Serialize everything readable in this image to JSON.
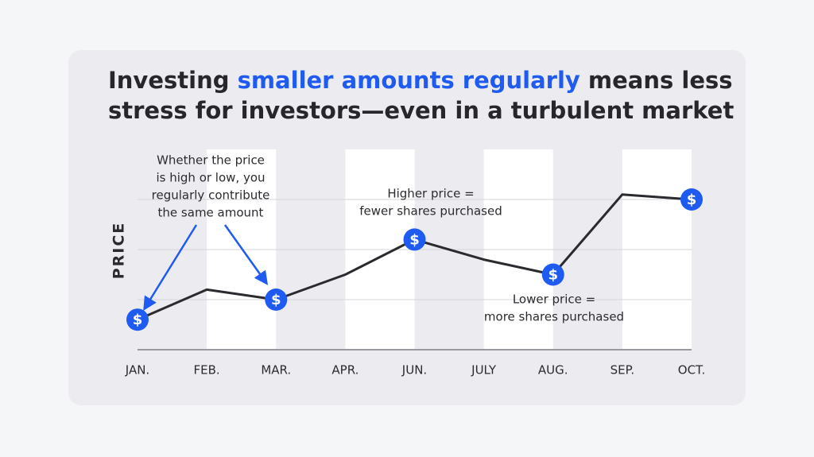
{
  "chart_data": {
    "type": "line",
    "title_parts": [
      "Investing ",
      "smaller amounts regularly",
      " means less",
      "stress for investors—even in a turbulent market"
    ],
    "highlight_color": "#1f5bf0",
    "y_label": "PRICE",
    "categories": [
      "JAN.",
      "FEB.",
      "MAR.",
      "APR.",
      "JUN.",
      "JULY",
      "AUG.",
      "SEP.",
      "OCT."
    ],
    "values": [
      0.6,
      1.2,
      1.0,
      1.5,
      2.2,
      1.8,
      1.5,
      3.1,
      3.0
    ],
    "color": "#2b2b2f",
    "markers": [
      0,
      2,
      4,
      6,
      8
    ],
    "marker_symbol": "$",
    "ylim": [
      0,
      4
    ],
    "grid_values": [
      1,
      2,
      3
    ],
    "annotations": [
      {
        "lines": [
          "Whether the price",
          "is high or low, you",
          "regularly contribute",
          "the same amount"
        ]
      },
      {
        "lines": [
          "Higher price =",
          "fewer shares purchased"
        ]
      },
      {
        "lines": [
          "Lower price =",
          "more shares purchased"
        ]
      }
    ]
  }
}
